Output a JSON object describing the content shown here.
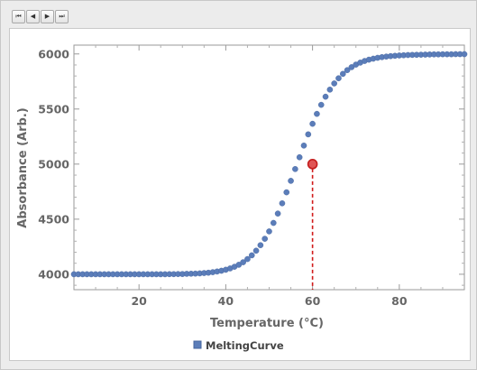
{
  "toolbar": {
    "buttons": [
      {
        "name": "first-frame-button",
        "glyph": "⏮"
      },
      {
        "name": "previous-frame-button",
        "glyph": "◀"
      },
      {
        "name": "next-frame-button",
        "glyph": "▶"
      },
      {
        "name": "last-frame-button",
        "glyph": "⏭"
      }
    ]
  },
  "colors": {
    "series": "#5b7db9",
    "series_edge": "#45659e",
    "highlight_fill": "#e05555",
    "highlight_edge": "#c41e1e",
    "dropline": "#d11a1a",
    "axis_text": "#666666"
  },
  "chart_data": {
    "type": "scatter",
    "title": "",
    "xlabel": "Temperature  (°C)",
    "ylabel": "Absorbance  (Arb.)",
    "xlim": [
      5,
      95
    ],
    "ylim": [
      3860,
      6080
    ],
    "x_ticks": [
      20,
      40,
      60,
      80
    ],
    "y_ticks": [
      4000,
      4500,
      5000,
      5500,
      6000
    ],
    "grid": false,
    "legend": "bottom",
    "series": [
      {
        "name": "MeltingCurve",
        "x": [
          5,
          6,
          7,
          8,
          9,
          10,
          11,
          12,
          13,
          14,
          15,
          16,
          17,
          18,
          19,
          20,
          21,
          22,
          23,
          24,
          25,
          26,
          27,
          28,
          29,
          30,
          31,
          32,
          33,
          34,
          35,
          36,
          37,
          38,
          39,
          40,
          41,
          42,
          43,
          44,
          45,
          46,
          47,
          48,
          49,
          50,
          51,
          52,
          53,
          54,
          55,
          56,
          57,
          58,
          59,
          60,
          61,
          62,
          63,
          64,
          65,
          66,
          67,
          68,
          69,
          70,
          71,
          72,
          73,
          74,
          75,
          76,
          77,
          78,
          79,
          80,
          81,
          82,
          83,
          84,
          85,
          86,
          87,
          88,
          89,
          90,
          91,
          92,
          93,
          94,
          95
        ],
        "y": [
          4000,
          4000,
          4000,
          4000,
          4000,
          4000,
          4000,
          4000,
          4000,
          4000,
          4000,
          4000,
          4000,
          4000,
          4000,
          4000,
          4000,
          4000,
          4000,
          4000,
          4000,
          4000,
          4001,
          4001,
          4002,
          4002,
          4004,
          4005,
          4006,
          4008,
          4011,
          4014,
          4019,
          4025,
          4032,
          4041,
          4053,
          4068,
          4086,
          4109,
          4138,
          4172,
          4214,
          4264,
          4322,
          4389,
          4466,
          4551,
          4644,
          4744,
          4848,
          4955,
          5062,
          5168,
          5270,
          5366,
          5456,
          5538,
          5612,
          5676,
          5732,
          5779,
          5819,
          5853,
          5880,
          5903,
          5921,
          5936,
          5948,
          5957,
          5965,
          5971,
          5976,
          5980,
          5983,
          5986,
          5988,
          5990,
          5991,
          5992,
          5993,
          5994,
          5995,
          5996,
          5996,
          5997,
          5997,
          5997,
          5998,
          5998,
          5998
        ]
      }
    ],
    "highlight": {
      "x": 60,
      "y": 5000
    }
  }
}
